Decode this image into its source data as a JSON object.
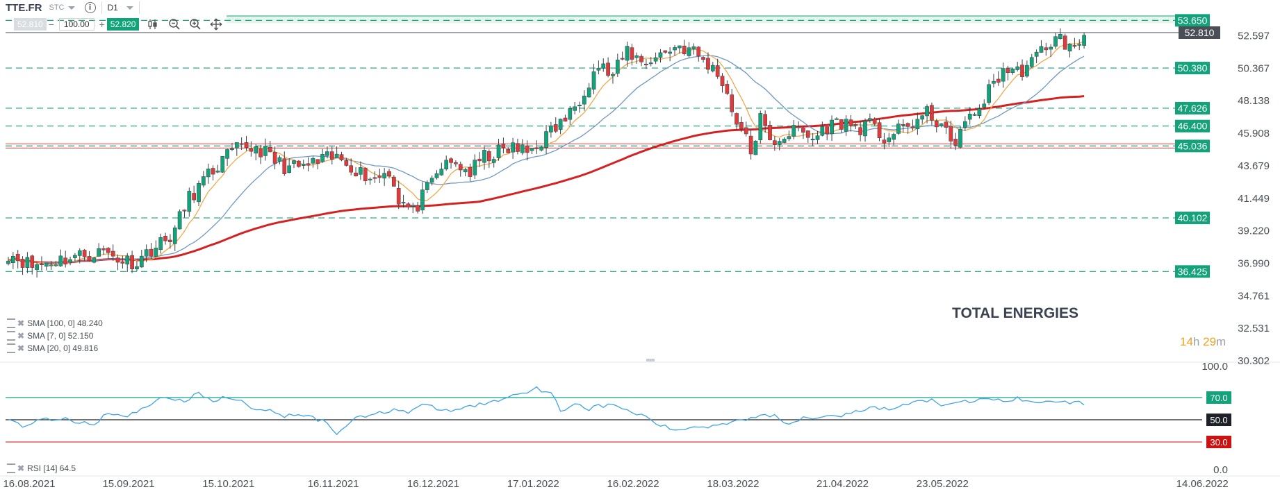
{
  "toolbar": {
    "symbol": "TTE.FR",
    "market": "STC",
    "timeframe": "D1",
    "bid": "52.810",
    "quantity": "100.00",
    "ask": "52.820",
    "minus": "−",
    "plus": "+"
  },
  "title": "TOTAL ENERGIES",
  "countdown": {
    "hours": "14",
    "h": "h",
    "minutes": "29",
    "m": "m"
  },
  "indicators": [
    {
      "label": "SMA [100, 0] 48.240"
    },
    {
      "label": "SMA [7, 0] 52.150"
    },
    {
      "label": "SMA [20, 0] 49.816"
    }
  ],
  "rsi_label": "RSI [14] 64.5",
  "colors": {
    "up": "#12a37a",
    "down": "#e03a3a",
    "sma100": "#d42222",
    "sma7": "#f0a94a",
    "sma20": "#6f97c2",
    "rsi": "#3ea3e6",
    "level": "#12a37a",
    "current": "#444a52"
  },
  "chart_data": {
    "type": "candlestick",
    "price_axis": {
      "ticks": [
        "52.597",
        "50.367",
        "48.138",
        "45.908",
        "43.679",
        "41.449",
        "39.220",
        "36.990",
        "34.761",
        "32.531",
        "30.302"
      ],
      "ylim": [
        30.302,
        54.0
      ]
    },
    "x_ticks": [
      "16.08.2021",
      "15.09.2021",
      "15.10.2021",
      "16.11.2021",
      "16.12.2021",
      "17.01.2022",
      "16.02.2022",
      "18.03.2022",
      "21.04.2022",
      "23.05.2022",
      "14.06.2022"
    ],
    "current_price": "52.810",
    "levels": [
      "53.650",
      "50.380",
      "47.626",
      "46.400",
      "45.036",
      "40.102",
      "36.425"
    ],
    "rsi_axis": {
      "ticks": [
        "100.0",
        "70.0",
        "30.0",
        "0.0"
      ],
      "levels": [
        "70.0",
        "50.0",
        "30.0"
      ]
    },
    "anchors": [
      [
        0,
        37.7
      ],
      [
        3,
        37.2
      ],
      [
        5,
        36.8
      ],
      [
        10,
        37.2
      ],
      [
        15,
        37.5
      ],
      [
        20,
        37.8
      ],
      [
        24,
        37.2
      ],
      [
        27,
        37.1
      ],
      [
        30,
        38.0
      ],
      [
        33,
        38.5
      ],
      [
        35,
        39.3
      ],
      [
        38,
        41.5
      ],
      [
        41,
        42.6
      ],
      [
        44,
        43.7
      ],
      [
        47,
        44.6
      ],
      [
        50,
        45.0
      ],
      [
        53,
        44.8
      ],
      [
        56,
        44.0
      ],
      [
        59,
        43.5
      ],
      [
        62,
        43.6
      ],
      [
        65,
        43.9
      ],
      [
        68,
        44.2
      ],
      [
        71,
        44.0
      ],
      [
        74,
        43.2
      ],
      [
        77,
        42.8
      ],
      [
        80,
        43.4
      ],
      [
        82,
        41.4
      ],
      [
        85,
        40.5
      ],
      [
        88,
        42.0
      ],
      [
        91,
        43.6
      ],
      [
        94,
        43.8
      ],
      [
        97,
        43.2
      ],
      [
        100,
        44.3
      ],
      [
        103,
        44.6
      ],
      [
        106,
        44.9
      ],
      [
        109,
        44.6
      ],
      [
        112,
        45.4
      ],
      [
        115,
        46.3
      ],
      [
        118,
        47.2
      ],
      [
        121,
        49.0
      ],
      [
        124,
        50.6
      ],
      [
        127,
        49.8
      ],
      [
        130,
        51.6
      ],
      [
        133,
        50.8
      ],
      [
        136,
        51.1
      ],
      [
        139,
        51.7
      ],
      [
        141,
        51.9
      ],
      [
        144,
        51.5
      ],
      [
        147,
        50.6
      ],
      [
        150,
        49.6
      ],
      [
        152,
        47.5
      ],
      [
        154,
        46.2
      ],
      [
        156,
        44.6
      ],
      [
        158,
        46.9
      ],
      [
        160,
        45.2
      ],
      [
        163,
        45.8
      ],
      [
        166,
        46.1
      ],
      [
        169,
        45.5
      ],
      [
        172,
        46.4
      ],
      [
        175,
        46.7
      ],
      [
        178,
        46.3
      ],
      [
        181,
        46.4
      ],
      [
        184,
        45.6
      ],
      [
        187,
        46.0
      ],
      [
        190,
        46.6
      ],
      [
        193,
        47.2
      ],
      [
        196,
        46.6
      ],
      [
        198,
        45.0
      ],
      [
        200,
        46.1
      ],
      [
        203,
        47.2
      ],
      [
        206,
        48.8
      ],
      [
        209,
        50.3
      ],
      [
        212,
        50.1
      ],
      [
        215,
        50.7
      ],
      [
        218,
        52.0
      ],
      [
        221,
        52.4
      ],
      [
        224,
        51.5
      ],
      [
        226,
        52.8
      ]
    ],
    "rsi_anchors": [
      [
        0,
        50.5
      ],
      [
        3,
        45.0
      ],
      [
        6,
        49.0
      ],
      [
        10,
        51.0
      ],
      [
        14,
        49.0
      ],
      [
        18,
        46.0
      ],
      [
        21,
        57.0
      ],
      [
        25,
        52.0
      ],
      [
        29,
        63.0
      ],
      [
        33,
        71.0
      ],
      [
        37,
        67.0
      ],
      [
        40,
        73.0
      ],
      [
        43,
        68.0
      ],
      [
        46,
        70.0
      ],
      [
        49,
        66.0
      ],
      [
        52,
        59.0
      ],
      [
        55,
        60.0
      ],
      [
        58,
        53.0
      ],
      [
        61,
        56.0
      ],
      [
        64,
        52.0
      ],
      [
        67,
        47.0
      ],
      [
        69,
        38.0
      ],
      [
        72,
        50.0
      ],
      [
        75,
        53.0
      ],
      [
        78,
        56.0
      ],
      [
        81,
        60.0
      ],
      [
        84,
        57.0
      ],
      [
        87,
        63.0
      ],
      [
        90,
        60.0
      ],
      [
        93,
        58.0
      ],
      [
        96,
        61.0
      ],
      [
        99,
        64.0
      ],
      [
        102,
        66.0
      ],
      [
        105,
        71.0
      ],
      [
        108,
        75.0
      ],
      [
        111,
        78.0
      ],
      [
        114,
        75.0
      ],
      [
        116,
        58.0
      ],
      [
        119,
        65.0
      ],
      [
        122,
        60.0
      ],
      [
        125,
        63.0
      ],
      [
        128,
        62.0
      ],
      [
        131,
        57.0
      ],
      [
        134,
        52.0
      ],
      [
        137,
        45.0
      ],
      [
        140,
        40.0
      ],
      [
        143,
        43.0
      ],
      [
        146,
        44.0
      ],
      [
        149,
        45.0
      ],
      [
        152,
        49.0
      ],
      [
        155,
        51.0
      ],
      [
        158,
        54.0
      ],
      [
        161,
        53.0
      ],
      [
        164,
        47.0
      ],
      [
        167,
        52.0
      ],
      [
        170,
        53.0
      ],
      [
        173,
        55.0
      ],
      [
        176,
        54.0
      ],
      [
        179,
        58.0
      ],
      [
        182,
        61.0
      ],
      [
        185,
        59.0
      ],
      [
        188,
        63.0
      ],
      [
        191,
        66.0
      ],
      [
        194,
        68.0
      ],
      [
        197,
        62.0
      ],
      [
        200,
        65.0
      ],
      [
        203,
        67.0
      ],
      [
        206,
        69.0
      ],
      [
        209,
        67.0
      ],
      [
        212,
        69.0
      ],
      [
        215,
        65.0
      ],
      [
        218,
        68.0
      ],
      [
        221,
        66.5
      ],
      [
        223,
        65.0
      ],
      [
        226,
        64.5
      ]
    ]
  }
}
